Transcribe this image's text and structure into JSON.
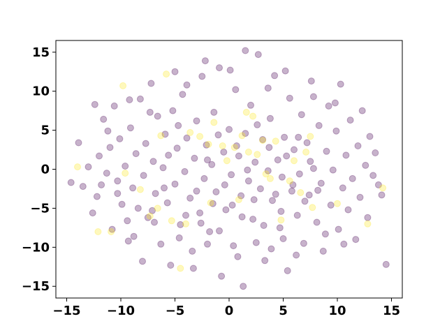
{
  "chart_data": {
    "type": "scatter",
    "title": "",
    "xlabel": "",
    "ylabel": "",
    "xlim": [
      -16,
      16
    ],
    "ylim": [
      -16.5,
      16.5
    ],
    "xticks": [
      -15,
      -10,
      -5,
      0,
      5,
      10,
      15
    ],
    "yticks": [
      -15,
      -10,
      -5,
      0,
      5,
      10,
      15
    ],
    "xtick_labels": [
      "−15",
      "−10",
      "−5",
      "0",
      "5",
      "10",
      "15"
    ],
    "ytick_labels": [
      "−15",
      "−10",
      "−5",
      "0",
      "5",
      "10",
      "15"
    ],
    "grid": false,
    "marker_alpha": 0.3,
    "colors": {
      "class_0": "#440154",
      "class_1": "#fde725"
    },
    "series": [
      {
        "class": 0,
        "color": "#440154",
        "points": [
          [
            -14.6,
            -1.7
          ],
          [
            -13.9,
            3.4
          ],
          [
            -13.5,
            -2.2
          ],
          [
            -13.0,
            0.3
          ],
          [
            -12.6,
            -5.6
          ],
          [
            -12.4,
            8.3
          ],
          [
            -12.2,
            -3.5
          ],
          [
            -12.0,
            1.7
          ],
          [
            -11.8,
            -2.0
          ],
          [
            -11.6,
            6.4
          ],
          [
            -11.3,
            -0.5
          ],
          [
            -11.0,
            2.8
          ],
          [
            -10.8,
            -7.7
          ],
          [
            -10.6,
            8.1
          ],
          [
            -10.3,
            -1.5
          ],
          [
            -10.1,
            3.9
          ],
          [
            -9.9,
            -4.5
          ],
          [
            -9.6,
            0.4
          ],
          [
            -9.3,
            -9.2
          ],
          [
            -9.1,
            5.3
          ],
          [
            -8.9,
            -2.4
          ],
          [
            -8.6,
            2.0
          ],
          [
            -8.4,
            -5.0
          ],
          [
            -8.2,
            9.0
          ],
          [
            -7.9,
            -0.8
          ],
          [
            -7.7,
            3.3
          ],
          [
            -7.5,
            -6.2
          ],
          [
            -7.2,
            11.0
          ],
          [
            -7.0,
            1.0
          ],
          [
            -6.8,
            -3.1
          ],
          [
            -6.6,
            6.8
          ],
          [
            -6.3,
            -9.6
          ],
          [
            -6.1,
            0.2
          ],
          [
            -5.9,
            4.5
          ],
          [
            -5.7,
            -4.3
          ],
          [
            -5.4,
            -12.3
          ],
          [
            -5.2,
            7.5
          ],
          [
            -5.0,
            -1.9
          ],
          [
            -4.8,
            2.7
          ],
          [
            -4.5,
            -7.1
          ],
          [
            -4.3,
            9.6
          ],
          [
            -4.1,
            -0.3
          ],
          [
            -3.9,
            4.0
          ],
          [
            -3.6,
            -3.7
          ],
          [
            -3.4,
            -10.5
          ],
          [
            -3.2,
            1.4
          ],
          [
            -3.0,
            6.2
          ],
          [
            -2.7,
            -5.6
          ],
          [
            -2.5,
            11.9
          ],
          [
            -2.3,
            -1.2
          ],
          [
            -2.1,
            3.1
          ],
          [
            -1.8,
            -8.0
          ],
          [
            -1.6,
            0.6
          ],
          [
            -1.4,
            7.3
          ],
          [
            -1.2,
            -2.9
          ],
          [
            -0.9,
            13.0
          ],
          [
            -0.7,
            -13.7
          ],
          [
            -0.5,
            2.2
          ],
          [
            -0.3,
            -5.2
          ],
          [
            0.0,
            5.1
          ],
          [
            0.2,
            -0.7
          ],
          [
            0.4,
            -9.8
          ],
          [
            0.6,
            10.2
          ],
          [
            0.9,
            1.7
          ],
          [
            1.1,
            -3.4
          ],
          [
            1.3,
            -15.0
          ],
          [
            1.5,
            4.6
          ],
          [
            1.8,
            -1.5
          ],
          [
            2.0,
            8.2
          ],
          [
            2.2,
            -6.4
          ],
          [
            2.4,
            0.9
          ],
          [
            2.7,
            14.7
          ],
          [
            2.9,
            -2.5
          ],
          [
            3.1,
            3.8
          ],
          [
            3.3,
            -11.7
          ],
          [
            3.6,
            -0.2
          ],
          [
            3.8,
            6.5
          ],
          [
            4.0,
            -4.0
          ],
          [
            4.2,
            12.0
          ],
          [
            4.5,
            1.2
          ],
          [
            4.7,
            -7.5
          ],
          [
            4.9,
            -1.0
          ],
          [
            5.1,
            4.1
          ],
          [
            5.4,
            -13.0
          ],
          [
            5.6,
            9.1
          ],
          [
            5.8,
            -2.8
          ],
          [
            6.0,
            2.5
          ],
          [
            6.3,
            -5.9
          ],
          [
            6.5,
            -0.6
          ],
          [
            6.7,
            7.0
          ],
          [
            6.9,
            -9.5
          ],
          [
            7.2,
            3.4
          ],
          [
            7.4,
            -3.3
          ],
          [
            7.6,
            11.3
          ],
          [
            7.8,
            0.1
          ],
          [
            8.1,
            -6.8
          ],
          [
            8.3,
            5.6
          ],
          [
            8.5,
            -1.8
          ],
          [
            8.7,
            -10.5
          ],
          [
            9.0,
            2.3
          ],
          [
            9.2,
            8.1
          ],
          [
            9.4,
            -4.6
          ],
          [
            9.6,
            -0.1
          ],
          [
            9.9,
            4.9
          ],
          [
            10.1,
            -7.7
          ],
          [
            10.3,
            10.9
          ],
          [
            10.5,
            -2.4
          ],
          [
            10.8,
            1.8
          ],
          [
            11.0,
            -5.2
          ],
          [
            11.2,
            6.3
          ],
          [
            11.4,
            -1.2
          ],
          [
            11.7,
            -9.0
          ],
          [
            11.9,
            3.0
          ],
          [
            12.1,
            -3.6
          ],
          [
            12.3,
            7.5
          ],
          [
            12.6,
            0.5
          ],
          [
            12.8,
            -6.2
          ],
          [
            13.0,
            4.2
          ],
          [
            13.3,
            -0.8
          ],
          [
            13.5,
            2.1
          ],
          [
            13.8,
            -2.0
          ],
          [
            14.1,
            -3.3
          ],
          [
            14.5,
            -12.2
          ],
          [
            -9.4,
            -6.6
          ],
          [
            -8.0,
            -11.8
          ],
          [
            -6.9,
            -6.8
          ],
          [
            -4.6,
            -8.8
          ],
          [
            -3.3,
            -12.7
          ],
          [
            -2.0,
            -9.6
          ],
          [
            -0.9,
            -7.9
          ],
          [
            0.8,
            -11.2
          ],
          [
            2.5,
            -9.4
          ],
          [
            3.9,
            -10.2
          ],
          [
            5.0,
            -8.9
          ],
          [
            6.2,
            -11.0
          ],
          [
            8.9,
            -8.3
          ],
          [
            10.6,
            -9.6
          ],
          [
            -9.2,
            8.9
          ],
          [
            -7.3,
            7.3
          ],
          [
            -5.0,
            12.5
          ],
          [
            -3.9,
            10.8
          ],
          [
            -2.2,
            13.9
          ],
          [
            0.1,
            12.7
          ],
          [
            1.5,
            15.2
          ],
          [
            3.6,
            10.4
          ],
          [
            5.2,
            12.6
          ],
          [
            7.8,
            9.3
          ],
          [
            9.8,
            8.5
          ],
          [
            -11.2,
            4.9
          ],
          [
            -10.3,
            -3.1
          ],
          [
            -8.8,
            -8.6
          ],
          [
            -7.1,
            -5.3
          ],
          [
            -6.0,
            -2.4
          ],
          [
            -5.6,
            1.8
          ],
          [
            -4.7,
            5.6
          ],
          [
            -4.0,
            -5.9
          ],
          [
            -3.0,
            -2.8
          ],
          [
            -2.6,
            -6.9
          ],
          [
            -2.0,
            1.2
          ],
          [
            -1.5,
            -4.4
          ],
          [
            -1.0,
            4.4
          ],
          [
            -0.4,
            -2.0
          ],
          [
            0.3,
            -4.6
          ],
          [
            0.7,
            3.0
          ],
          [
            1.2,
            -6.1
          ],
          [
            1.7,
            -0.1
          ],
          [
            2.3,
            -3.9
          ],
          [
            2.6,
            5.7
          ],
          [
            3.2,
            -7.2
          ],
          [
            3.7,
            2.8
          ],
          [
            4.3,
            -3.2
          ],
          [
            4.8,
            -5.4
          ],
          [
            5.3,
            1.7
          ],
          [
            5.9,
            -2.0
          ],
          [
            6.4,
            4.1
          ],
          [
            7.0,
            -4.1
          ],
          [
            7.5,
            1.0
          ],
          [
            8.2,
            -2.7
          ]
        ]
      },
      {
        "class": 1,
        "color": "#fde725",
        "points": [
          [
            -14.0,
            0.3
          ],
          [
            -12.1,
            -8.0
          ],
          [
            -10.9,
            -8.0
          ],
          [
            -9.8,
            10.7
          ],
          [
            -9.6,
            -0.5
          ],
          [
            -8.2,
            -2.6
          ],
          [
            -7.3,
            -6.0
          ],
          [
            -6.6,
            -5.0
          ],
          [
            -6.3,
            4.3
          ],
          [
            -5.8,
            12.2
          ],
          [
            -5.3,
            -6.6
          ],
          [
            -4.5,
            -12.7
          ],
          [
            -4.0,
            -7.0
          ],
          [
            -3.6,
            4.7
          ],
          [
            -2.7,
            4.2
          ],
          [
            -1.9,
            3.2
          ],
          [
            -1.7,
            -4.3
          ],
          [
            -1.4,
            6.0
          ],
          [
            -0.6,
            3.0
          ],
          [
            -0.2,
            1.1
          ],
          [
            0.5,
            2.8
          ],
          [
            0.9,
            -3.9
          ],
          [
            1.2,
            4.3
          ],
          [
            1.6,
            7.3
          ],
          [
            1.8,
            2.2
          ],
          [
            2.2,
            6.8
          ],
          [
            2.6,
            1.9
          ],
          [
            3.1,
            3.7
          ],
          [
            3.4,
            -0.6
          ],
          [
            3.8,
            -1.2
          ],
          [
            4.3,
            3.6
          ],
          [
            4.8,
            -6.5
          ],
          [
            5.6,
            -1.5
          ],
          [
            6.0,
            1.1
          ],
          [
            6.6,
            -3.0
          ],
          [
            7.1,
            2.2
          ],
          [
            7.5,
            4.2
          ],
          [
            7.7,
            -4.9
          ],
          [
            10.0,
            -4.4
          ],
          [
            12.8,
            -7.0
          ],
          [
            14.2,
            -2.4
          ]
        ]
      }
    ]
  }
}
